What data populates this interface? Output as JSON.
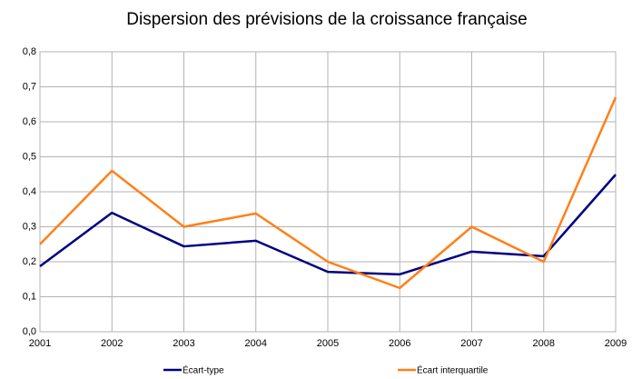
{
  "chart_data": {
    "type": "line",
    "title": "Dispersion des prévisions de la croissance française",
    "x": [
      2001,
      2002,
      2003,
      2004,
      2005,
      2006,
      2007,
      2008,
      2009
    ],
    "xlim": [
      2001,
      2009
    ],
    "xticks": [
      2001,
      2002,
      2003,
      2004,
      2005,
      2006,
      2007,
      2008,
      2009
    ],
    "ylim": [
      0,
      0.8
    ],
    "yticks": [
      {
        "value": 0,
        "label": "0,0"
      },
      {
        "value": 0.1,
        "label": "0,1"
      },
      {
        "value": 0.2,
        "label": "0,2"
      },
      {
        "value": 0.3,
        "label": "0,3"
      },
      {
        "value": 0.4,
        "label": "0,4"
      },
      {
        "value": 0.5,
        "label": "0,5"
      },
      {
        "value": 0.6,
        "label": "0,6"
      },
      {
        "value": 0.7,
        "label": "0,7"
      },
      {
        "value": 0.8,
        "label": "0,8"
      }
    ],
    "grid": true,
    "legend": "bottom",
    "series": [
      {
        "name": "Écart-type",
        "color": "#000080",
        "values": [
          0.187,
          0.34,
          0.244,
          0.26,
          0.171,
          0.164,
          0.229,
          0.216,
          0.449
        ]
      },
      {
        "name": "Écart interquartile",
        "color": "#ff8018",
        "values": [
          0.25,
          0.46,
          0.3,
          0.338,
          0.2,
          0.125,
          0.3,
          0.2,
          0.67
        ]
      }
    ]
  }
}
